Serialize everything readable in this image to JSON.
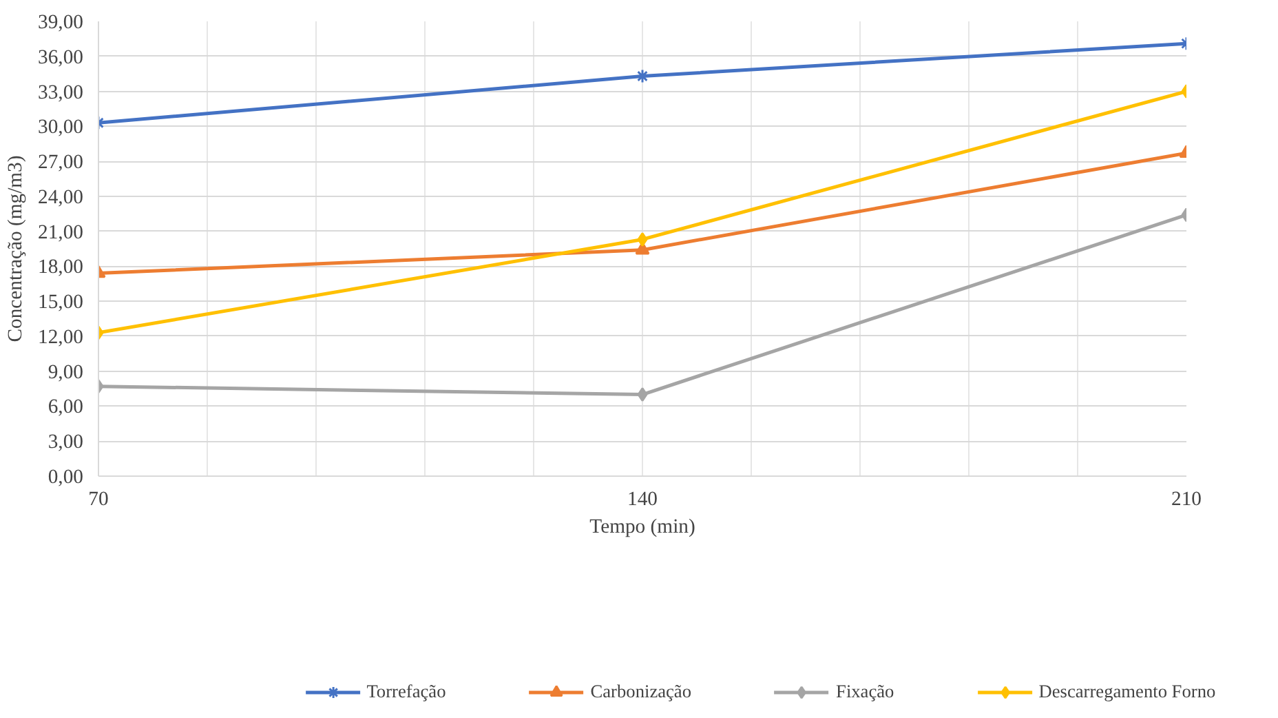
{
  "chart_data": {
    "type": "line",
    "xlabel": "Tempo (min)",
    "ylabel": "Concentração (mg/m3)",
    "x": [
      70,
      140,
      210
    ],
    "series": [
      {
        "name": "Torrefação",
        "color": "#4472c4",
        "marker": "cross",
        "values": [
          30.3,
          34.3,
          37.1
        ]
      },
      {
        "name": "Carbonização",
        "color": "#ed7d31",
        "marker": "triangle",
        "values": [
          17.4,
          19.4,
          27.7
        ]
      },
      {
        "name": "Fixação",
        "color": "#a5a5a5",
        "marker": "diamond",
        "values": [
          7.7,
          7.0,
          22.4
        ]
      },
      {
        "name": "Descarregamento Forno",
        "color": "#ffc000",
        "marker": "diamond",
        "values": [
          12.3,
          20.3,
          33.0
        ]
      }
    ],
    "xlim": [
      70,
      210
    ],
    "ylim": [
      0,
      39
    ],
    "xticks": [
      70,
      {
        "value": 84,
        "label": null
      },
      {
        "value": 98,
        "label": null
      },
      {
        "value": 112,
        "label": null
      },
      {
        "value": 126,
        "label": null
      },
      140,
      {
        "value": 154,
        "label": null
      },
      {
        "value": 168,
        "label": null
      },
      {
        "value": 182,
        "label": null
      },
      {
        "value": 196,
        "label": null
      },
      210
    ],
    "yticks": [
      {
        "value": 0,
        "label": "0,00"
      },
      {
        "value": 3,
        "label": "3,00"
      },
      {
        "value": 6,
        "label": "6,00"
      },
      {
        "value": 9,
        "label": "9,00"
      },
      {
        "value": 12,
        "label": "12,00"
      },
      {
        "value": 15,
        "label": "15,00"
      },
      {
        "value": 18,
        "label": "18,00"
      },
      {
        "value": 21,
        "label": "21,00"
      },
      {
        "value": 24,
        "label": "24,00"
      },
      {
        "value": 27,
        "label": "27,00"
      },
      {
        "value": 30,
        "label": "30,00"
      },
      {
        "value": 33,
        "label": "33,00"
      },
      {
        "value": 36,
        "label": "36,00"
      },
      {
        "value": 39,
        "label": "39,00"
      }
    ],
    "grid": true,
    "legend": "bottom"
  }
}
